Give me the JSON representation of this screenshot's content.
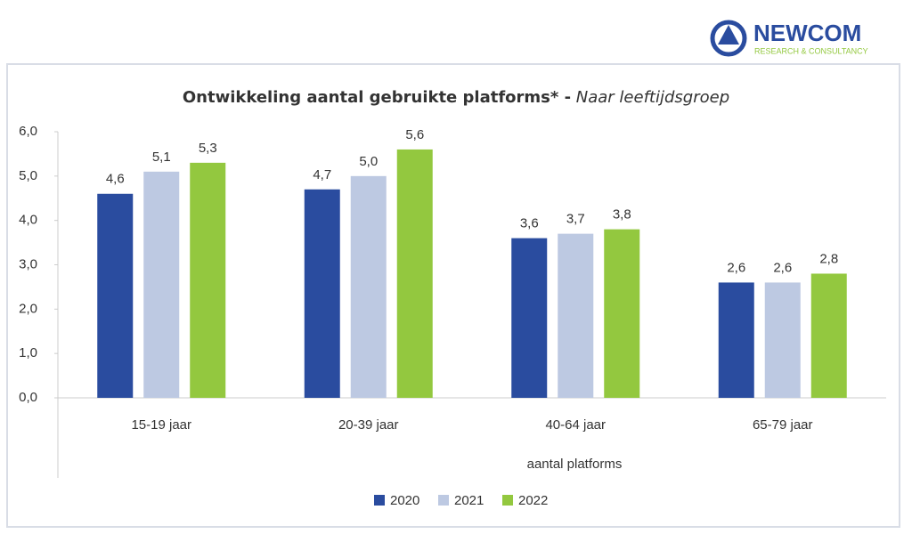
{
  "logo": {
    "name": "NEWCOM",
    "tagline": "RESEARCH & CONSULTANCY"
  },
  "chart_data": {
    "type": "bar",
    "title": "Ontwikkeling aantal gebruikte platforms* -",
    "subtitle": "Naar leeftijdsgroep",
    "x_label": "aantal platforms",
    "categories": [
      "15-19 jaar",
      "20-39 jaar",
      "40-64 jaar",
      "65-79 jaar"
    ],
    "series": [
      {
        "name": "2020",
        "color": "#2a4c9f",
        "values": [
          4.6,
          4.7,
          3.6,
          2.6
        ],
        "value_labels": [
          "4,6",
          "4,7",
          "3,6",
          "2,6"
        ]
      },
      {
        "name": "2021",
        "color": "#bdc9e2",
        "values": [
          5.1,
          5.0,
          3.7,
          2.6
        ],
        "value_labels": [
          "5,1",
          "5,0",
          "3,7",
          "2,6"
        ]
      },
      {
        "name": "2022",
        "color": "#93c83f",
        "values": [
          5.3,
          5.6,
          3.8,
          2.8
        ],
        "value_labels": [
          "5,3",
          "5,6",
          "3,8",
          "2,8"
        ]
      }
    ],
    "ylim": [
      0,
      6
    ],
    "yticks": [
      {
        "value": 0,
        "label": "0,0"
      },
      {
        "value": 1,
        "label": "1,0"
      },
      {
        "value": 2,
        "label": "2,0"
      },
      {
        "value": 3,
        "label": "3,0"
      },
      {
        "value": 4,
        "label": "4,0"
      },
      {
        "value": 5,
        "label": "5,0"
      },
      {
        "value": 6,
        "label": "6,0"
      }
    ],
    "legend": "bottom"
  }
}
